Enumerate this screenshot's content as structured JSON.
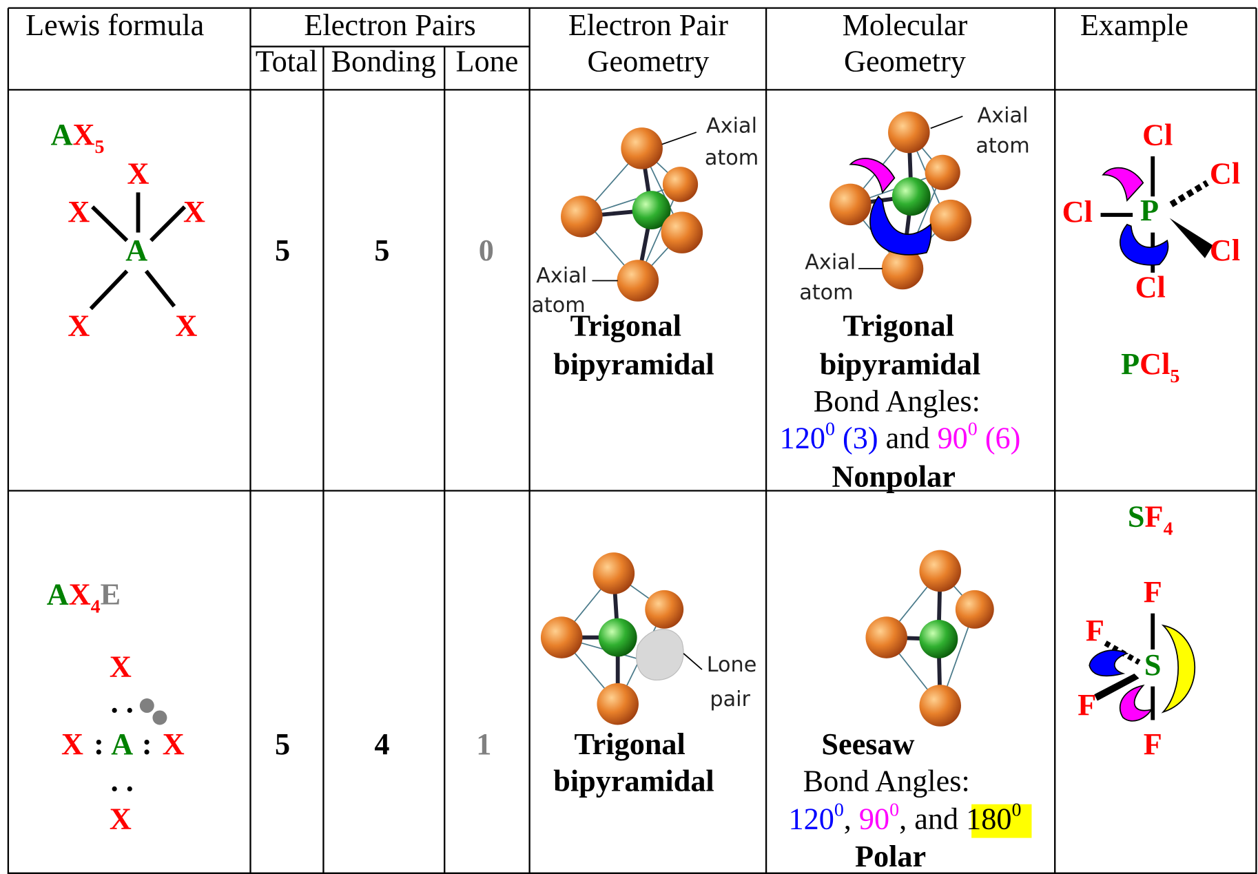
{
  "table": {
    "header": {
      "lewis_formula": "Lewis formula",
      "electron_pairs": "Electron Pairs",
      "total": "Total",
      "bonding": "Bonding",
      "lone": "Lone",
      "pair_geometry": [
        "Electron Pair",
        "Geometry"
      ],
      "molecular_geometry": [
        "Molecular",
        "Geometry"
      ],
      "example": "Example"
    },
    "rows": [
      {
        "notation": [
          "A",
          "X",
          "5"
        ],
        "lewis": {
          "atoms": [
            "X",
            "X",
            "X",
            "A",
            "X",
            "X"
          ]
        },
        "total": 5,
        "bonding": 5,
        "lone": 0,
        "pair_geometry": {
          "labels": [
            "Axial",
            "atom",
            "Axial",
            "atom"
          ],
          "name": [
            "Trigonal",
            "bipyramidal"
          ]
        },
        "molecular_geometry": {
          "labels": [
            "Axial",
            "atom",
            "Axial",
            "atom"
          ],
          "name": [
            "Trigonal",
            "bipyramidal"
          ],
          "angles_title": "Bond Angles:",
          "angles": [
            "120",
            "0",
            " (3)",
            " and ",
            "90",
            "0",
            " (6)"
          ],
          "polarity": "Nonpolar"
        },
        "example": {
          "atoms": [
            "Cl",
            "Cl",
            "Cl",
            "P",
            "Cl",
            "Cl"
          ],
          "formula": [
            "P",
            "Cl",
            "5"
          ]
        }
      },
      {
        "notation": [
          "A",
          "X",
          "4",
          "E"
        ],
        "lewis": {
          "atoms": [
            "X",
            ". .",
            "X",
            ":",
            "A",
            ":",
            "X",
            ". .",
            "X"
          ]
        },
        "total": 5,
        "bonding": 4,
        "lone": 1,
        "pair_geometry": {
          "labels": [
            "Lone",
            "pair"
          ],
          "name": [
            "Trigonal",
            "bipyramidal"
          ]
        },
        "molecular_geometry": {
          "name": [
            "Seesaw"
          ],
          "angles_title": "Bond Angles:",
          "angles": [
            "120",
            "0",
            ", ",
            "90",
            "0",
            ", and ",
            "180",
            "0"
          ],
          "polarity": "Polar"
        },
        "example": {
          "formula": [
            "S",
            "F",
            "4"
          ],
          "atoms": [
            "F",
            "F",
            "S",
            "F",
            "F"
          ]
        }
      }
    ]
  }
}
